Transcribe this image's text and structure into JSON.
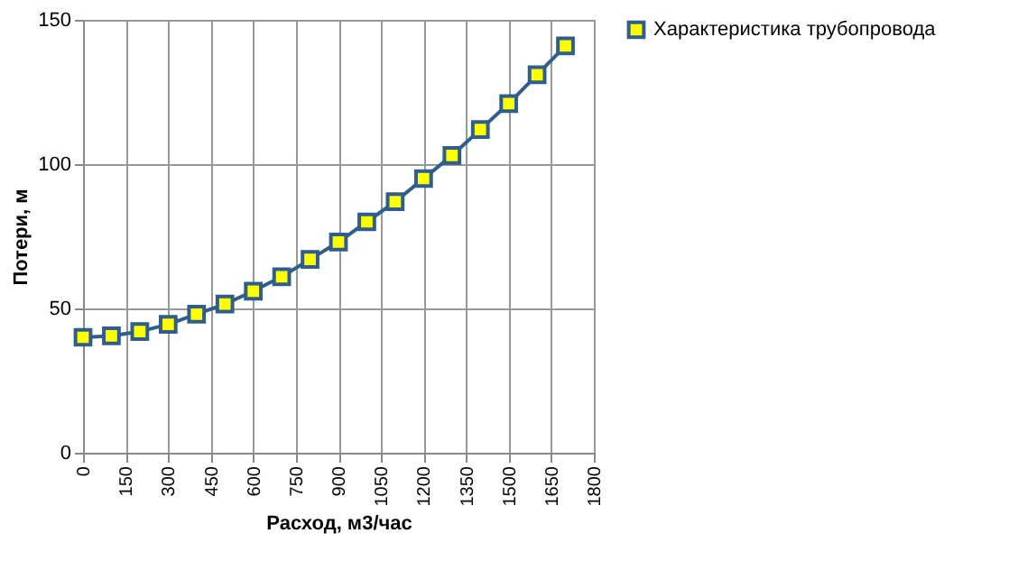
{
  "chart_data": {
    "type": "line",
    "xlabel": "Расход, м3/час",
    "ylabel": "Потери, м",
    "x": [
      0,
      100,
      200,
      300,
      400,
      500,
      600,
      700,
      800,
      900,
      1000,
      1100,
      1200,
      1300,
      1400,
      1500,
      1600,
      1700
    ],
    "series": [
      {
        "name": "Характеристика трубопровода",
        "color": "#2f5d8c",
        "values": [
          40,
          40.5,
          42,
          44.5,
          48,
          51.5,
          56,
          61,
          67,
          73,
          80,
          87,
          95,
          103,
          112,
          121,
          131,
          141
        ]
      }
    ],
    "xlim": [
      0,
      1800
    ],
    "xticks": [
      0,
      150,
      300,
      450,
      600,
      750,
      900,
      1050,
      1200,
      1350,
      1500,
      1650,
      1800
    ],
    "ylim": [
      0,
      150
    ],
    "yticks": [
      0,
      50,
      100,
      150
    ],
    "grid": true,
    "legend": "right",
    "marker": "square",
    "line_style": "solid"
  }
}
